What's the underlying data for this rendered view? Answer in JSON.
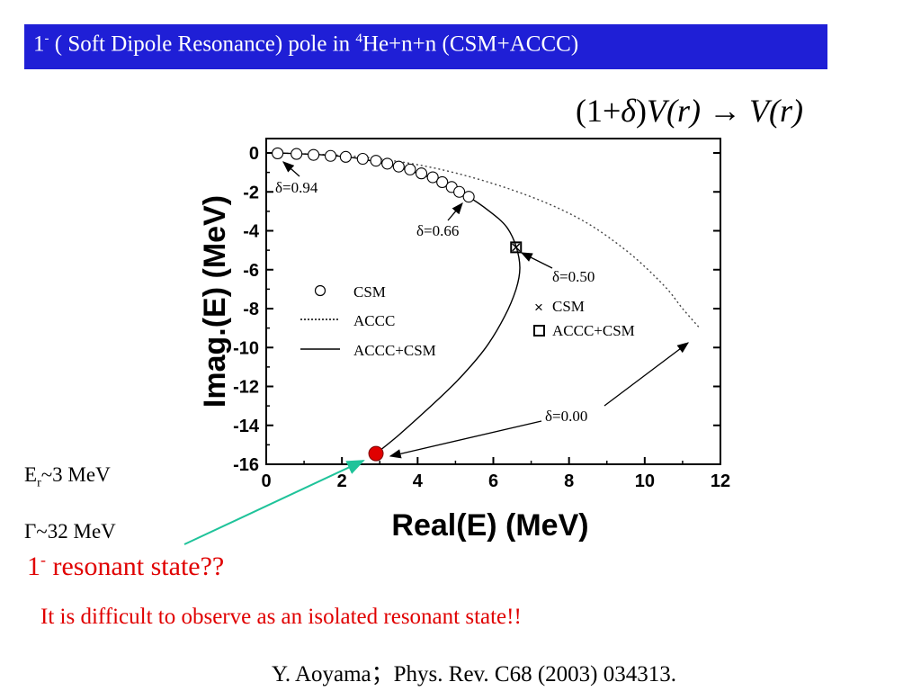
{
  "slide": {
    "title": {
      "prefix": "1",
      "sup": "-",
      "middle": " ( Soft Dipole Resonance) pole in ",
      "sup2": "4",
      "suffix": "He+n+n (CSM+ACCC)"
    },
    "formula": {
      "open": "(1+",
      "delta": "δ",
      "close": ")",
      "v1": "V",
      "r1": "(r)",
      "arrow": " → ",
      "v2": "V",
      "r2": "(r)"
    },
    "energy": {
      "prefix": "E",
      "sub": "r",
      "value": "~3 MeV"
    },
    "width": "Γ~32 MeV",
    "question": {
      "prefix": "1",
      "sup": "-",
      "text": " resonant state??"
    },
    "remark": "It is difficult to observe as an isolated resonant state!!",
    "reference": "Y. Aoyama；Phys. Rev. C68 (2003) 034313.",
    "colors": {
      "title_bg": "#1f1fd6",
      "title_text": "#ffffff",
      "highlight": "#e00000",
      "pointer": "#1fc39a"
    }
  },
  "chart_data": {
    "type": "scatter",
    "xlabel": "Real(E) (MeV)",
    "ylabel": "Imag.(E) (MeV)",
    "xlim": [
      0,
      12
    ],
    "ylim": [
      -16,
      0
    ],
    "xticks": [
      "0",
      "2",
      "4",
      "6",
      "8",
      "10",
      "12"
    ],
    "yticks": [
      "0",
      "-2",
      "-4",
      "-6",
      "-8",
      "-10",
      "-12",
      "-14",
      "-16"
    ],
    "series": [
      {
        "name": "CSM",
        "style": "open-circle",
        "points": [
          [
            0.3,
            -0.02
          ],
          [
            0.8,
            -0.05
          ],
          [
            1.25,
            -0.1
          ],
          [
            1.7,
            -0.15
          ],
          [
            2.1,
            -0.2
          ],
          [
            2.55,
            -0.3
          ],
          [
            2.9,
            -0.4
          ],
          [
            3.2,
            -0.55
          ],
          [
            3.5,
            -0.7
          ],
          [
            3.8,
            -0.85
          ],
          [
            4.1,
            -1.05
          ],
          [
            4.4,
            -1.25
          ],
          [
            4.65,
            -1.5
          ],
          [
            4.9,
            -1.75
          ],
          [
            5.1,
            -2.0
          ],
          [
            5.35,
            -2.25
          ]
        ]
      },
      {
        "name": "ACCC",
        "style": "dotted-line",
        "points": [
          [
            0.3,
            0.0
          ],
          [
            2.5,
            -0.2
          ],
          [
            4.5,
            -0.8
          ],
          [
            6.5,
            -1.9
          ],
          [
            8.2,
            -3.3
          ],
          [
            9.5,
            -5.0
          ],
          [
            10.5,
            -6.8
          ],
          [
            11.0,
            -8.0
          ],
          [
            11.45,
            -9.0
          ]
        ]
      },
      {
        "name": "ACCC+CSM",
        "style": "solid-line",
        "points": [
          [
            0.3,
            0.0
          ],
          [
            1.5,
            -0.1
          ],
          [
            2.5,
            -0.3
          ],
          [
            3.5,
            -0.75
          ],
          [
            4.5,
            -1.4
          ],
          [
            5.3,
            -2.2
          ],
          [
            5.9,
            -3.0
          ],
          [
            6.35,
            -3.8
          ],
          [
            6.6,
            -4.8
          ],
          [
            6.7,
            -5.9
          ],
          [
            6.6,
            -7.0
          ],
          [
            6.3,
            -8.4
          ],
          [
            5.8,
            -10.0
          ],
          [
            5.1,
            -11.6
          ],
          [
            4.3,
            -13.1
          ],
          [
            3.5,
            -14.5
          ],
          [
            2.9,
            -15.45
          ]
        ]
      },
      {
        "name": "CSM",
        "style": "cross",
        "points": [
          [
            6.6,
            -4.85
          ]
        ]
      },
      {
        "name": "ACCC+CSM",
        "style": "open-square",
        "points": [
          [
            6.6,
            -4.85
          ]
        ]
      },
      {
        "name": "",
        "style": "red-dot",
        "points": [
          [
            2.9,
            -15.45
          ]
        ]
      }
    ],
    "legend_main": [
      "CSM",
      "ACCC",
      "ACCC+CSM"
    ],
    "legend_small": [
      "CSM",
      "ACCC+CSM"
    ],
    "annotations": {
      "d094": "δ=0.94",
      "d066": "δ=0.66",
      "d050": "δ=0.50",
      "d000": "δ=0.00"
    }
  }
}
